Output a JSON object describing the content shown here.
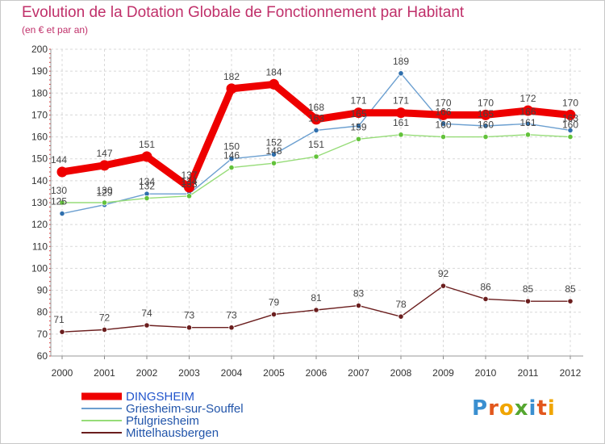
{
  "header": {
    "title": "Evolution de la Dotation Globale de Fonctionnement par Habitant",
    "subtitle": "(en € et par an)"
  },
  "logo": {
    "text": "Proxiti",
    "letters": [
      "P",
      "r",
      "o",
      "x",
      "i",
      "t",
      "i"
    ],
    "letter_colors": [
      "#3a8fd0",
      "#e2571d",
      "#f0a500",
      "#55a630",
      "#3a8fd0",
      "#e2571d",
      "#f0a500"
    ]
  },
  "chart_data": {
    "type": "line",
    "title": "Evolution de la Dotation Globale de Fonctionnement par Habitant",
    "subtitle": "(en € et par an)",
    "xlabel": "",
    "ylabel": "",
    "x": [
      "2000",
      "2001",
      "2002",
      "2003",
      "2004",
      "2005",
      "2006",
      "2007",
      "2008",
      "2009",
      "2010",
      "2011",
      "2012"
    ],
    "ylim": [
      60,
      200
    ],
    "yticks": [
      60,
      70,
      80,
      90,
      100,
      110,
      120,
      130,
      140,
      150,
      160,
      170,
      180,
      190,
      200
    ],
    "grid": true,
    "legend_position": "bottom-left",
    "series": [
      {
        "name": "DINGSHEIM",
        "color": "#ee0000",
        "marker_color": "#ee0000",
        "emphasis": true,
        "values": [
          144,
          147,
          151,
          137,
          182,
          184,
          168,
          171,
          171,
          170,
          170,
          172,
          170
        ]
      },
      {
        "name": "Griesheim-sur-Souffel",
        "color": "#6b9fd0",
        "marker_color": "#2f6fad",
        "emphasis": false,
        "values": [
          125,
          129,
          134,
          134,
          150,
          152,
          163,
          165,
          189,
          166,
          165,
          166,
          163
        ]
      },
      {
        "name": "Pfulgriesheim",
        "color": "#96dc78",
        "marker_color": "#62c23a",
        "emphasis": false,
        "values": [
          130,
          130,
          132,
          133,
          146,
          148,
          151,
          159,
          161,
          160,
          160,
          161,
          160
        ]
      },
      {
        "name": "Mittelhausbergen",
        "color": "#6b1e1e",
        "marker_color": "#6b1e1e",
        "emphasis": false,
        "values": [
          71,
          72,
          74,
          73,
          73,
          79,
          81,
          83,
          78,
          92,
          86,
          85,
          85
        ]
      }
    ]
  }
}
